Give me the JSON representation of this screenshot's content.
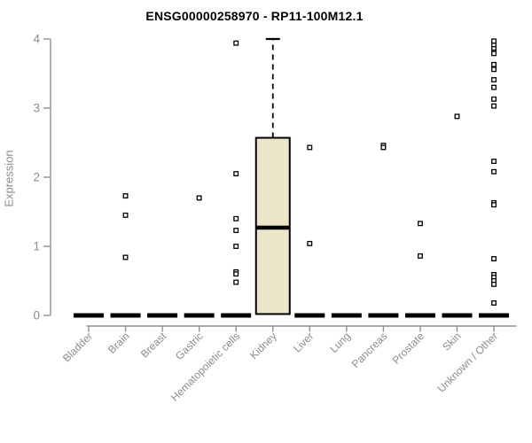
{
  "title": "ENSG00000258970 - RP11-100M12.1",
  "chart_data": {
    "type": "boxplot",
    "title": "ENSG00000258970 - RP11-100M12.1",
    "xlabel": "",
    "ylabel": "Expression",
    "ylim": [
      0,
      4
    ],
    "yticks": [
      0,
      1,
      2,
      3,
      4
    ],
    "grid": false,
    "legend": "none",
    "categories": [
      "Bladder",
      "Brain",
      "Breast",
      "Gastric",
      "Hematopoietic cells",
      "Kidney",
      "Liver",
      "Lung",
      "Pancreas",
      "Prostate",
      "Skin",
      "Unknown / Other"
    ],
    "series": [
      {
        "category": "Bladder",
        "q1": 0,
        "median": 0,
        "q3": 0,
        "outliers": []
      },
      {
        "category": "Brain",
        "q1": 0,
        "median": 0,
        "q3": 0,
        "outliers": [
          1.73,
          1.45,
          0.84
        ]
      },
      {
        "category": "Breast",
        "q1": 0,
        "median": 0,
        "q3": 0,
        "outliers": []
      },
      {
        "category": "Gastric",
        "q1": 0,
        "median": 0,
        "q3": 0,
        "outliers": [
          1.7
        ]
      },
      {
        "category": "Hematopoietic cells",
        "q1": 0,
        "median": 0,
        "q3": 0,
        "outliers": [
          3.94,
          2.05,
          1.4,
          1.23,
          1.0,
          0.63,
          0.6,
          0.48
        ]
      },
      {
        "category": "Kidney",
        "q1": 0.02,
        "median": 1.27,
        "q3": 2.57,
        "whisker_high": 4.0,
        "whisker_style": "dashed",
        "outliers": []
      },
      {
        "category": "Liver",
        "q1": 0,
        "median": 0,
        "q3": 0,
        "outliers": [
          2.43,
          1.04
        ]
      },
      {
        "category": "Lung",
        "q1": 0,
        "median": 0,
        "q3": 0,
        "outliers": []
      },
      {
        "category": "Pancreas",
        "q1": 0,
        "median": 0,
        "q3": 0,
        "outliers": [
          2.46,
          2.43
        ]
      },
      {
        "category": "Prostate",
        "q1": 0,
        "median": 0,
        "q3": 0,
        "outliers": [
          1.33,
          0.86
        ]
      },
      {
        "category": "Skin",
        "q1": 0,
        "median": 0,
        "q3": 0,
        "outliers": [
          2.88
        ]
      },
      {
        "category": "Unknown / Other",
        "q1": 0,
        "median": 0,
        "q3": 0,
        "outliers": [
          3.97,
          3.91,
          3.86,
          3.81,
          3.79,
          3.63,
          3.56,
          3.41,
          3.3,
          3.13,
          3.03,
          2.23,
          2.08,
          1.63,
          1.6,
          0.82,
          0.59,
          0.55,
          0.5,
          0.45,
          0.18
        ]
      }
    ],
    "colors": {
      "box_fill": "#ece5c8",
      "box_stroke": "#000000",
      "median": "#000000",
      "zero_dash": "#000000",
      "outlier_stroke": "#000000",
      "outlier_fill": "#ffffff",
      "axis": "#919191",
      "tick_label": "#8c8c8c",
      "title": "#000000"
    }
  }
}
